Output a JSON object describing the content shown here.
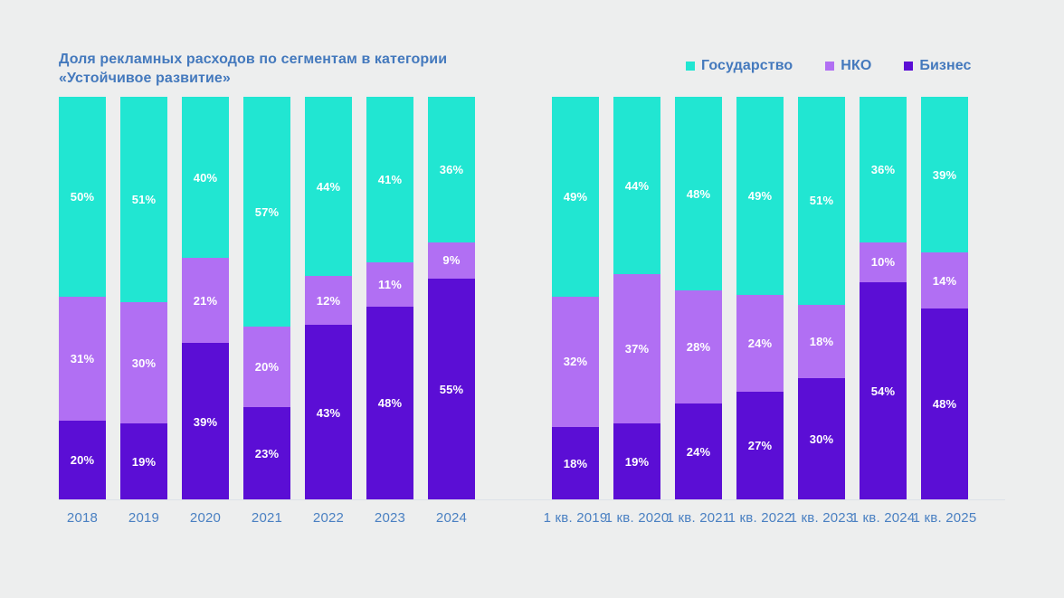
{
  "title": {
    "line1": "Доля рекламных расходов по сегментам в категории",
    "line2": "«Устойчивое развитие»"
  },
  "legend": [
    {
      "label": "Государство",
      "color": "#21e6d2"
    },
    {
      "label": "НКО",
      "color": "#b16ff3"
    },
    {
      "label": "Бизнес",
      "color": "#5b0ed5"
    }
  ],
  "colors": {
    "background": "#edeeee",
    "title_text": "#4479bd",
    "axis_text": "#4a80c2",
    "segment_label_text": "#ffffff",
    "baseline": "#dde2e8"
  },
  "chart_data": [
    {
      "type": "bar",
      "stacked": true,
      "unit": "%",
      "legend_position": "top-right",
      "value_range": [
        0,
        100
      ],
      "grid": false,
      "stack_order": "top-to-bottom",
      "categories": [
        "2018",
        "2019",
        "2020",
        "2021",
        "2022",
        "2023",
        "2024"
      ],
      "series": [
        {
          "name": "Государство",
          "color": "#21e6d2",
          "values": [
            50,
            51,
            40,
            57,
            44,
            41,
            36
          ]
        },
        {
          "name": "НКО",
          "color": "#b16ff3",
          "values": [
            31,
            30,
            21,
            20,
            12,
            11,
            9
          ]
        },
        {
          "name": "Бизнес",
          "color": "#5b0ed5",
          "values": [
            20,
            19,
            39,
            23,
            43,
            48,
            55
          ]
        }
      ]
    },
    {
      "type": "bar",
      "stacked": true,
      "unit": "%",
      "legend_position": "top-right",
      "value_range": [
        0,
        100
      ],
      "grid": false,
      "stack_order": "top-to-bottom",
      "categories": [
        "1 кв. 2019",
        "1 кв. 2020",
        "1 кв. 2021",
        "1 кв. 2022",
        "1 кв. 2023",
        "1 кв. 2024",
        "1 кв. 2025"
      ],
      "series": [
        {
          "name": "Государство",
          "color": "#21e6d2",
          "values": [
            49,
            44,
            48,
            49,
            51,
            36,
            39
          ]
        },
        {
          "name": "НКО",
          "color": "#b16ff3",
          "values": [
            32,
            37,
            28,
            24,
            18,
            10,
            14
          ]
        },
        {
          "name": "Бизнес",
          "color": "#5b0ed5",
          "values": [
            18,
            19,
            24,
            27,
            30,
            54,
            48
          ]
        }
      ]
    }
  ]
}
